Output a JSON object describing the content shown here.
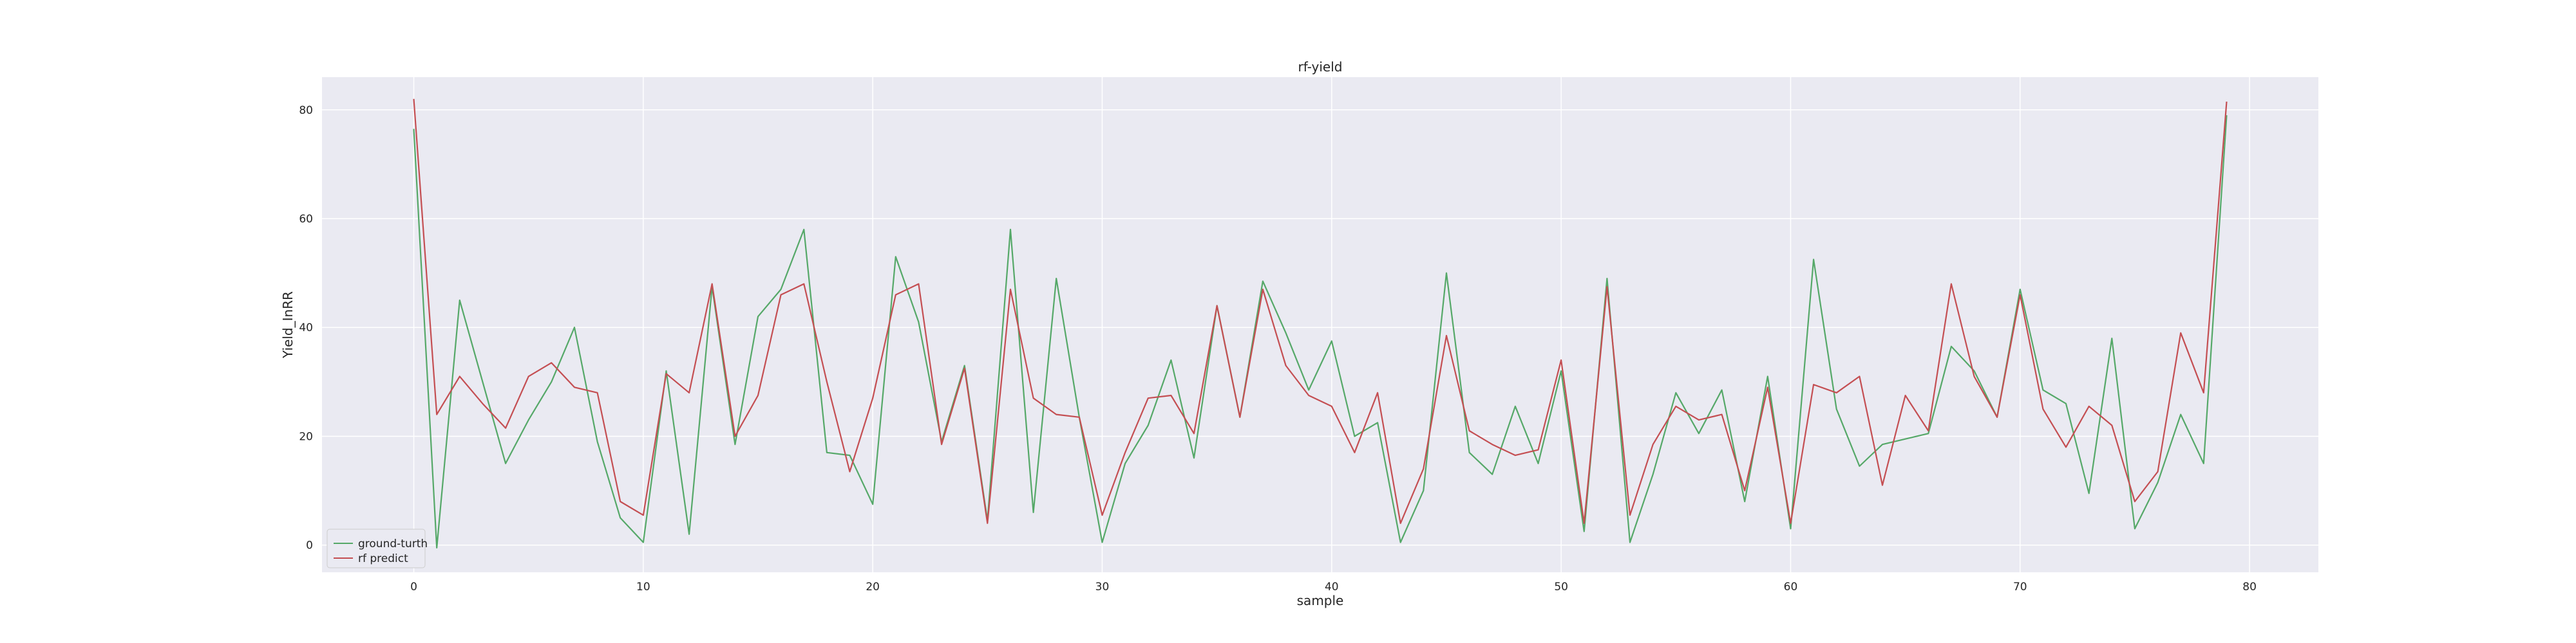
{
  "chart_data": {
    "type": "line",
    "title": "rf-yield",
    "xlabel": "sample",
    "ylabel": "Yield_InRR",
    "xlim": [
      -4,
      83
    ],
    "ylim": [
      -5,
      86
    ],
    "xticks": [
      0,
      10,
      20,
      30,
      40,
      50,
      60,
      70,
      80
    ],
    "yticks": [
      0,
      20,
      40,
      60,
      80
    ],
    "grid": true,
    "legend_position": "lower-left",
    "x": [
      0,
      1,
      2,
      3,
      4,
      5,
      6,
      7,
      8,
      9,
      10,
      11,
      12,
      13,
      14,
      15,
      16,
      17,
      18,
      19,
      20,
      21,
      22,
      23,
      24,
      25,
      26,
      27,
      28,
      29,
      30,
      31,
      32,
      33,
      34,
      35,
      36,
      37,
      38,
      39,
      40,
      41,
      42,
      43,
      44,
      45,
      46,
      47,
      48,
      49,
      50,
      51,
      52,
      53,
      54,
      55,
      56,
      57,
      58,
      59,
      60,
      61,
      62,
      63,
      64,
      65,
      66,
      67,
      68,
      69,
      70,
      71,
      72,
      73,
      74,
      75,
      76,
      77,
      78,
      79
    ],
    "series": [
      {
        "name": "ground-turth",
        "color": "#55a868",
        "values": [
          76.5,
          -0.5,
          45,
          30,
          15,
          23,
          30,
          40,
          19,
          5,
          0.5,
          32,
          2,
          47.5,
          18.5,
          42,
          47,
          58,
          17,
          16.5,
          7.5,
          53,
          41,
          19,
          33,
          4.5,
          58,
          6,
          49,
          23.5,
          0.5,
          15,
          22,
          34,
          16,
          44,
          23.5,
          48.5,
          39,
          28.5,
          37.5,
          20,
          22.5,
          0.5,
          10,
          50,
          17,
          13,
          25.5,
          15,
          32,
          2.5,
          49,
          0.5,
          13,
          28,
          20.5,
          28.5,
          8,
          31,
          3,
          52.5,
          25,
          14.5,
          18.5,
          19.5,
          20.5,
          36.5,
          32,
          23.5,
          47,
          28.5,
          26,
          9.5,
          38,
          3,
          11.5,
          24,
          15,
          79
        ]
      },
      {
        "name": "rf predict",
        "color": "#c44e52",
        "values": [
          82,
          24,
          31,
          26,
          21.5,
          31,
          33.5,
          29,
          28,
          8,
          5.5,
          31.5,
          28,
          48,
          20,
          27.5,
          46,
          48,
          30,
          13.5,
          27,
          46,
          48,
          18.5,
          32.5,
          4,
          47,
          27,
          24,
          23.5,
          5.5,
          17,
          27,
          27.5,
          20.5,
          44,
          23.5,
          47,
          33,
          27.5,
          25.5,
          17,
          28,
          4,
          14,
          38.5,
          21,
          18.5,
          16.5,
          17.5,
          34,
          4,
          47.5,
          5.5,
          18.5,
          25.5,
          23,
          24,
          10,
          29,
          4,
          29.5,
          28,
          31,
          11,
          27.5,
          21,
          48,
          31,
          23.5,
          46,
          25,
          18,
          25.5,
          22,
          8,
          13.5,
          39,
          28,
          81.5
        ]
      }
    ]
  }
}
